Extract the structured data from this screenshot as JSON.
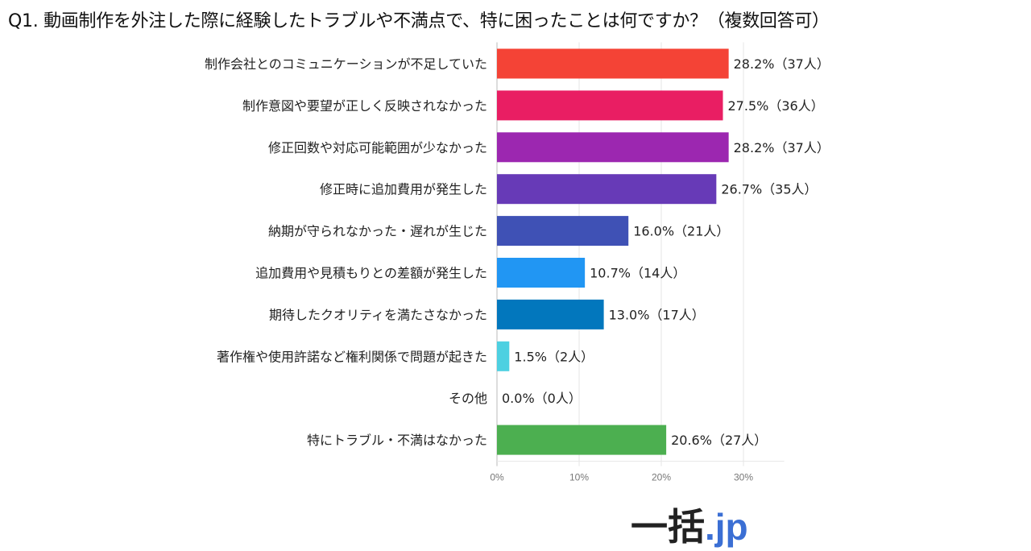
{
  "chart_data": {
    "type": "bar",
    "orientation": "horizontal",
    "title": "Q1. 動画制作を外注した際に経験したトラブルや不満点で、特に困ったことは何ですか？（複数回答可）",
    "categories": [
      "制作会社とのコミュニケーションが不足していた",
      "制作意図や要望が正しく反映されなかった",
      "修正回数や対応可能範囲が少なかった",
      "修正時に追加費用が発生した",
      "納期が守られなかった・遅れが生じた",
      "追加費用や見積もりとの差額が発生した",
      "期待したクオリティを満たさなかった",
      "著作権や使用許諾など権利関係で問題が起きた",
      "その他",
      "特にトラブル・不満はなかった"
    ],
    "values": [
      28.2,
      27.5,
      28.2,
      26.7,
      16.0,
      10.7,
      13.0,
      1.5,
      0.0,
      20.6
    ],
    "data_labels": [
      "28.2%（37人）",
      "27.5%（36人）",
      "28.2%（37人）",
      "26.7%（35人）",
      "16.0%（21人）",
      "10.7%（14人）",
      "13.0%（17人）",
      "1.5%（2人）",
      "0.0%（0人）",
      "20.6%（27人）"
    ],
    "colors": [
      "#f44336",
      "#e91e63",
      "#9c27b0",
      "#673ab7",
      "#3f51b5",
      "#2196f3",
      "#0277bd",
      "#4dd0e1",
      "#9e9e9e",
      "#4caf50"
    ],
    "xticks": [
      "0%",
      "10%",
      "20%",
      "30%"
    ],
    "tick_values": [
      0,
      10,
      20,
      30
    ],
    "xlim": [
      0,
      33
    ],
    "grid": true,
    "xlabel": "",
    "ylabel": ""
  },
  "logo": {
    "part1": "一括",
    "part2": ".jp"
  }
}
